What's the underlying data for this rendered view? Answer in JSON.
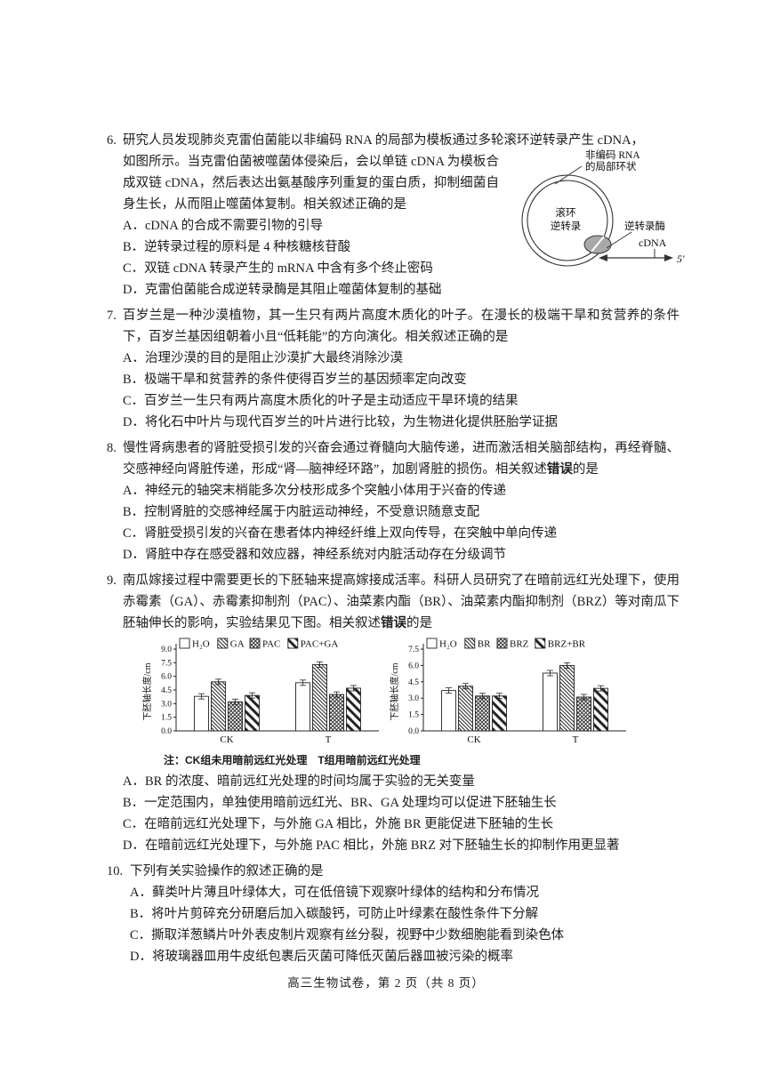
{
  "footer": "高三生物试卷，第 2 页（共 8 页）",
  "questions": {
    "q6": {
      "number": "6.",
      "stem_line1": "研究人员发现肺炎克雷伯菌能以非编码 RNA 的局部为模板通过多轮滚环逆转录产生 cDNA，",
      "stem_rest": "如图所示。当克雷伯菌被噬菌体侵染后，会以单链 cDNA 为模板合成双链 cDNA，然后表达出氨基酸序列重复的蛋白质，抑制细菌自身生长，从而阻止噬菌体复制。相关叙述正确的是",
      "options": [
        "A．cDNA 的合成不需要引物的引导",
        "B．逆转录过程的原料是 4 种核糖核苷酸",
        "C．双链 cDNA 转录产生的 mRNA 中含有多个终止密码",
        "D．克雷伯菌能合成逆转录酶是其阻止噬菌体复制的基础"
      ],
      "diagram": {
        "rna_label_1": "非编码 RNA",
        "rna_label_2": "的局部环状",
        "circle_label_1": "滚环",
        "circle_label_2": "逆转录",
        "enzyme_label": "逆转录酶",
        "cdna_label": "cDNA",
        "five_prime_label": "5′"
      }
    },
    "q7": {
      "number": "7.",
      "stem": "百岁兰是一种沙漠植物，其一生只有两片高度木质化的叶子。在漫长的极端干旱和贫营养的条件下，百岁兰基因组朝着小且“低耗能”的方向演化。相关叙述正确的是",
      "options": [
        "A．治理沙漠的目的是阻止沙漠扩大最终消除沙漠",
        "B．极端干旱和贫营养的条件使得百岁兰的基因频率定向改变",
        "C．百岁兰一生只有两片高度木质化的叶子是主动适应干旱环境的结果",
        "D．将化石中叶片与现代百岁兰的叶片进行比较，为生物进化提供胚胎学证据"
      ]
    },
    "q8": {
      "number": "8.",
      "stem_pre": "慢性肾病患者的肾脏受损引发的兴奋会通过脊髓向大脑传递，进而激活相关脑部结构，再经脊髓、交感神经向肾脏传递，形成“肾—脑神经环路”，加剧肾脏的损伤。相关叙述",
      "stem_bold": "错误",
      "stem_post": "的是",
      "options": [
        "A．神经元的轴突末梢能多次分枝形成多个突触小体用于兴奋的传递",
        "B．控制肾脏的交感神经属于内脏运动神经，不受意识随意支配",
        "C．肾脏受损引发的兴奋在患者体内神经纤维上双向传导，在突触中单向传递",
        "D．肾脏中存在感受器和效应器，神经系统对内脏活动存在分级调节"
      ]
    },
    "q9": {
      "number": "9.",
      "stem_pre": "南瓜嫁接过程中需要更长的下胚轴来提高嫁接成活率。科研人员研究了在暗前远红光处理下，使用赤霉素（GA）、赤霉素抑制剂（PAC）、油菜素内酯（BR）、油菜素内酯抑制剂（BRZ）等对南瓜下胚轴伸长的影响，实验结果见下图。相关叙述",
      "stem_bold": "错误",
      "stem_post": "的是",
      "note": "注：CK组未用暗前远红光处理　T组用暗前远红光处理",
      "options": [
        "A．BR 的浓度、暗前远红光处理的时间均属于实验的无关变量",
        "B．一定范围内，单独使用暗前远红光、BR、GA 处理均可以促进下胚轴生长",
        "C．在暗前远红光处理下，与外施 GA 相比，外施 BR 更能促进下胚轴的生长",
        "D．在暗前远红光处理下，与外施 PAC 相比，外施 BRZ 对下胚轴生长的抑制作用更显著"
      ]
    },
    "q10": {
      "number": "10.",
      "stem": "下列有关实验操作的叙述正确的是",
      "options": [
        "A．藓类叶片薄且叶绿体大，可在低倍镜下观察叶绿体的结构和分布情况",
        "B．将叶片剪碎充分研磨后加入碳酸钙，可防止叶绿素在酸性条件下分解",
        "C．撕取洋葱鳞片叶外表皮制片观察有丝分裂，视野中少数细胞能看到染色体",
        "D．将玻璃器皿用牛皮纸包裹后灭菌可降低灭菌后器皿被污染的概率"
      ]
    }
  },
  "chart_data": [
    {
      "type": "bar",
      "title": "",
      "ylabel": "下胚轴长度/cm",
      "xlabel": "",
      "categories": [
        "CK",
        "T"
      ],
      "ylim": [
        0,
        9.0
      ],
      "yticks": [
        0.0,
        1.5,
        3.0,
        4.5,
        6.0,
        7.5,
        9.0
      ],
      "grid": false,
      "legend_position": "top",
      "error_bars": true,
      "series": [
        {
          "name": "H₂O",
          "pattern": "plain",
          "values": [
            3.8,
            5.3
          ]
        },
        {
          "name": "GA",
          "pattern": "fine-hatch",
          "values": [
            5.4,
            7.3
          ]
        },
        {
          "name": "PAC",
          "pattern": "cross-hatch",
          "values": [
            3.2,
            4.0
          ]
        },
        {
          "name": "PAC+GA",
          "pattern": "wide-hatch",
          "values": [
            3.9,
            4.7
          ]
        }
      ]
    },
    {
      "type": "bar",
      "title": "",
      "ylabel": "下胚轴长度/cm",
      "xlabel": "",
      "categories": [
        "CK",
        "T"
      ],
      "ylim": [
        0,
        7.5
      ],
      "yticks": [
        0.0,
        1.5,
        3.0,
        4.5,
        6.0,
        7.5
      ],
      "grid": false,
      "legend_position": "top",
      "error_bars": true,
      "series": [
        {
          "name": "H₂O",
          "pattern": "plain",
          "values": [
            3.7,
            5.3
          ]
        },
        {
          "name": "BR",
          "pattern": "fine-hatch",
          "values": [
            4.1,
            6.0
          ]
        },
        {
          "name": "BRZ",
          "pattern": "cross-hatch",
          "values": [
            3.2,
            3.1
          ]
        },
        {
          "name": "BRZ+BR",
          "pattern": "wide-hatch",
          "values": [
            3.2,
            3.9
          ]
        }
      ]
    }
  ]
}
